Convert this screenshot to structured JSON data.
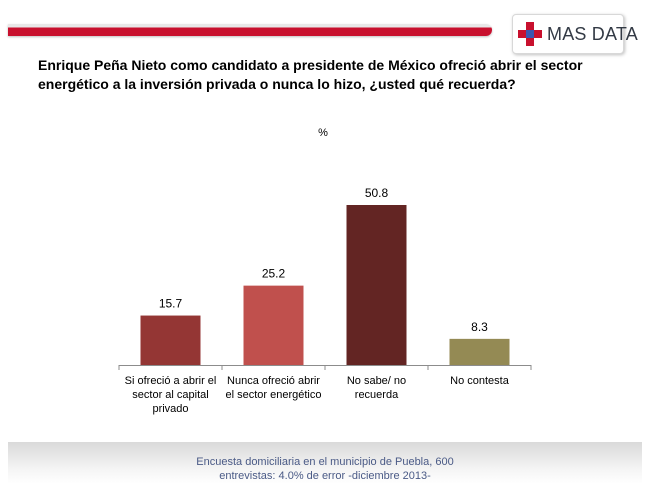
{
  "brand": {
    "name": "MAS DATA",
    "cross_color": "#c8102e",
    "accent_color": "#3a56b0"
  },
  "question": "Enrique Peña Nieto como candidato a presidente de México ofreció abrir el sector energético a la inversión privada o nunca lo hizo, ¿usted qué recuerda?",
  "chart_data": {
    "type": "bar",
    "title": "Enrique Peña Nieto como candidato a presidente de México ofreció abrir el sector energético a la inversión privada o nunca lo hizo, ¿usted qué recuerda?",
    "unit_label": "%",
    "categories": [
      [
        "Si ofreció a abrir el",
        "sector al capital",
        "privado"
      ],
      [
        "Nunca ofreció abrir",
        "el sector energético"
      ],
      [
        "No sabe/ no",
        "recuerda"
      ],
      [
        "No contesta"
      ]
    ],
    "values": [
      15.7,
      25.2,
      50.8,
      8.3
    ],
    "value_labels": [
      "15.7",
      "25.2",
      "50.8",
      "8.3"
    ],
    "colors": [
      "#943634",
      "#c0504d",
      "#632523",
      "#948a54"
    ],
    "ylim": [
      0,
      50.8
    ],
    "grid": false,
    "legend": "none"
  },
  "footer": {
    "line1": "Encuesta domiciliaria en el municipio de Puebla, 600",
    "line2": "entrevistas: 4.0% de error -diciembre 2013-"
  }
}
